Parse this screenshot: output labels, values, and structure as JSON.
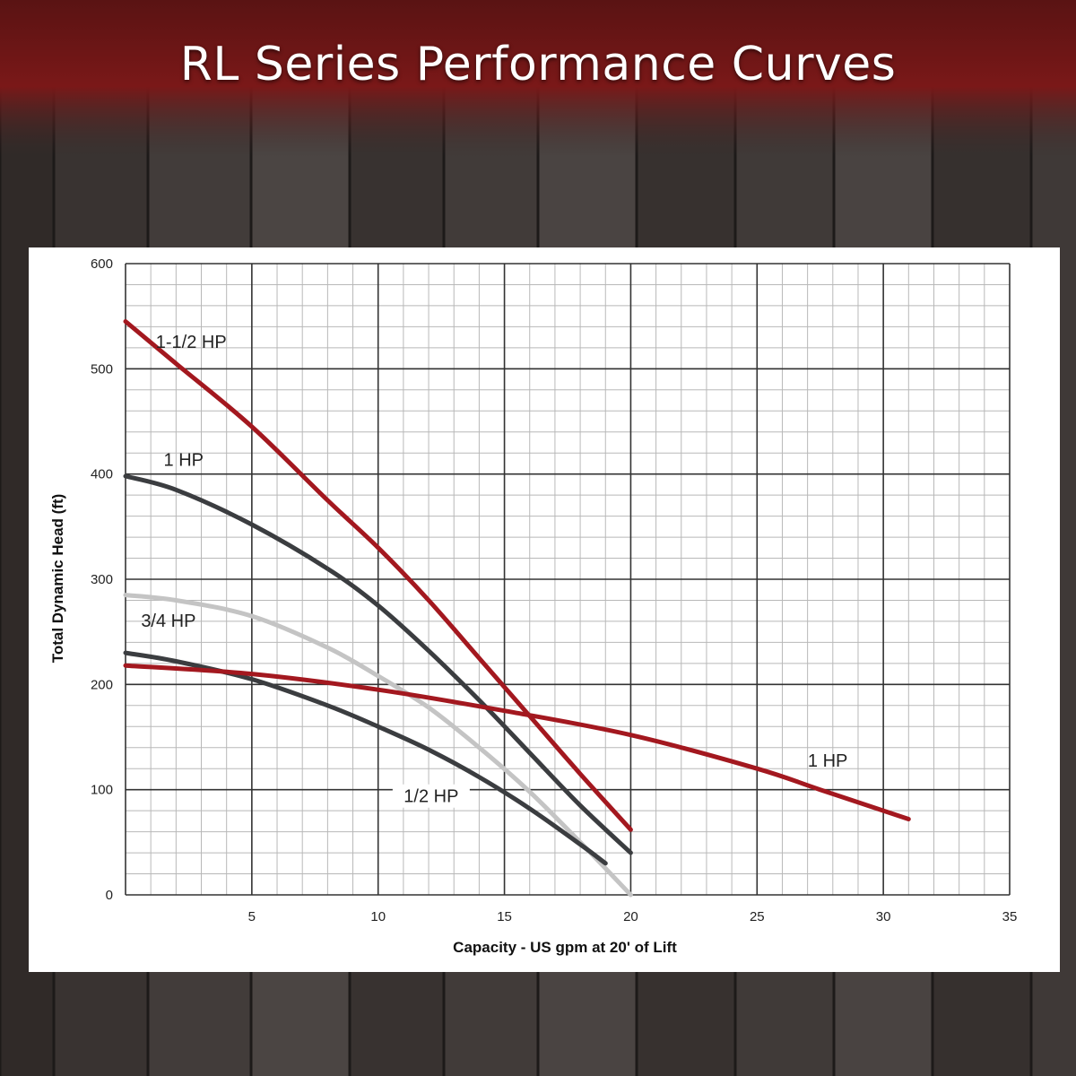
{
  "title": "RL Series Performance Curves",
  "colors": {
    "background": "#3a3432",
    "banner_red": "#6e1414",
    "panel": "#ffffff",
    "red_curve": "#a3181f",
    "dark_curve": "#3b3d40",
    "light_curve": "#c4c4c4"
  },
  "chart_data": {
    "type": "line",
    "xlabel": "Capacity - US gpm at 20' of Lift",
    "ylabel": "Total Dynamic Head (ft)",
    "xlim": [
      0,
      35
    ],
    "ylim": [
      0,
      600
    ],
    "grid": true,
    "x_ticks": [
      "5",
      "10",
      "15",
      "20",
      "25",
      "30",
      "35"
    ],
    "y_ticks": [
      "0",
      "100",
      "200",
      "300",
      "400",
      "500",
      "600"
    ],
    "series": [
      {
        "name": "1-1/2 HP",
        "color": "#a3181f",
        "x": [
          0,
          2,
          5,
          8,
          10,
          12,
          14,
          16,
          18,
          20
        ],
        "y": [
          545,
          505,
          445,
          375,
          330,
          280,
          225,
          170,
          115,
          62
        ]
      },
      {
        "name": "1 HP",
        "color": "#3b3d40",
        "x": [
          0,
          2,
          5,
          8,
          10,
          12,
          14,
          16,
          18,
          20
        ],
        "y": [
          398,
          385,
          352,
          310,
          275,
          232,
          185,
          135,
          85,
          40
        ]
      },
      {
        "name": "3/4 HP",
        "color": "#c4c4c4",
        "x": [
          0,
          2,
          5,
          8,
          10,
          12,
          14,
          16,
          18,
          20
        ],
        "y": [
          285,
          280,
          265,
          235,
          208,
          178,
          140,
          98,
          50,
          0
        ]
      },
      {
        "name": "1/2 HP",
        "color": "#3b3d40",
        "x": [
          0,
          2,
          5,
          8,
          10,
          12,
          14,
          16,
          18,
          19
        ],
        "y": [
          230,
          222,
          205,
          180,
          160,
          138,
          112,
          82,
          48,
          30
        ]
      },
      {
        "name": "1 HP",
        "color": "#a3181f",
        "x": [
          0,
          5,
          10,
          15,
          20,
          25,
          27.5,
          31
        ],
        "y": [
          218,
          210,
          195,
          175,
          152,
          120,
          100,
          72
        ]
      }
    ]
  }
}
